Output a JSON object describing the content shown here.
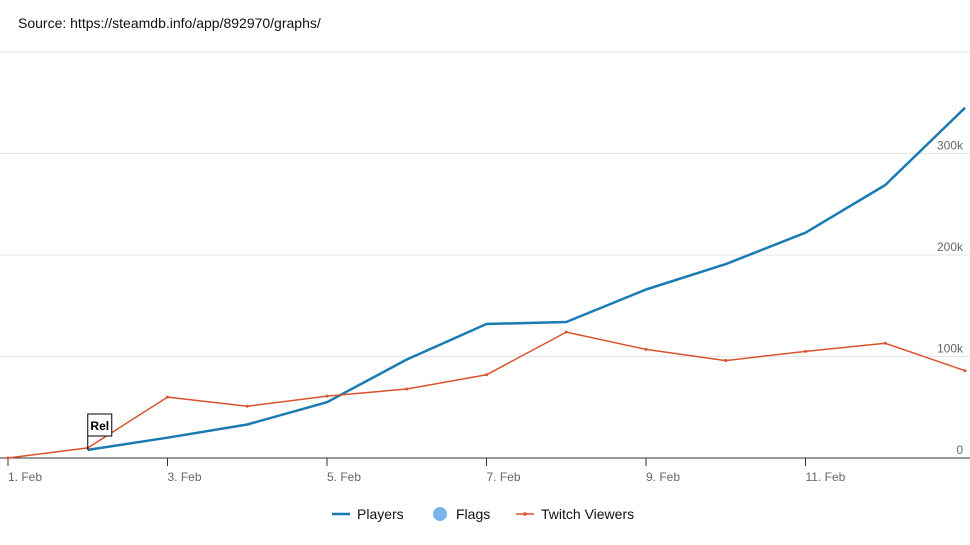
{
  "source_text": "Source: https://steamdb.info/app/892970/graphs/",
  "chart_data": {
    "type": "line",
    "x": [
      "1. Feb",
      "2. Feb",
      "3. Feb",
      "4. Feb",
      "5. Feb",
      "6. Feb",
      "7. Feb",
      "8. Feb",
      "9. Feb",
      "10. Feb",
      "11. Feb",
      "12. Feb",
      "13. Feb"
    ],
    "x_tick_labels": [
      "1. Feb",
      "3. Feb",
      "5. Feb",
      "7. Feb",
      "9. Feb",
      "11. Feb"
    ],
    "y_tick_labels": [
      "0",
      "100k",
      "200k",
      "300k"
    ],
    "ylim": [
      0,
      400000
    ],
    "grid": true,
    "legend_position": "bottom",
    "series": [
      {
        "name": "Players",
        "color": "#1a7ab3",
        "values": [
          null,
          8000,
          20000,
          33000,
          55000,
          97000,
          132000,
          134000,
          166000,
          191000,
          222000,
          269000,
          345000
        ]
      },
      {
        "name": "Twitch Viewers",
        "color": "#d9532c",
        "values": [
          0,
          10000,
          60000,
          51000,
          61000,
          68000,
          82000,
          124000,
          107000,
          96000,
          105000,
          113000,
          86000
        ]
      }
    ],
    "flags": [
      {
        "x": "2. Feb",
        "label": "Rel"
      }
    ],
    "legend": [
      "Players",
      "Flags",
      "Twitch Viewers"
    ],
    "colors": {
      "flags": "#7cb5ec",
      "grid": "#e6e6e6",
      "axis": "#333333"
    }
  }
}
